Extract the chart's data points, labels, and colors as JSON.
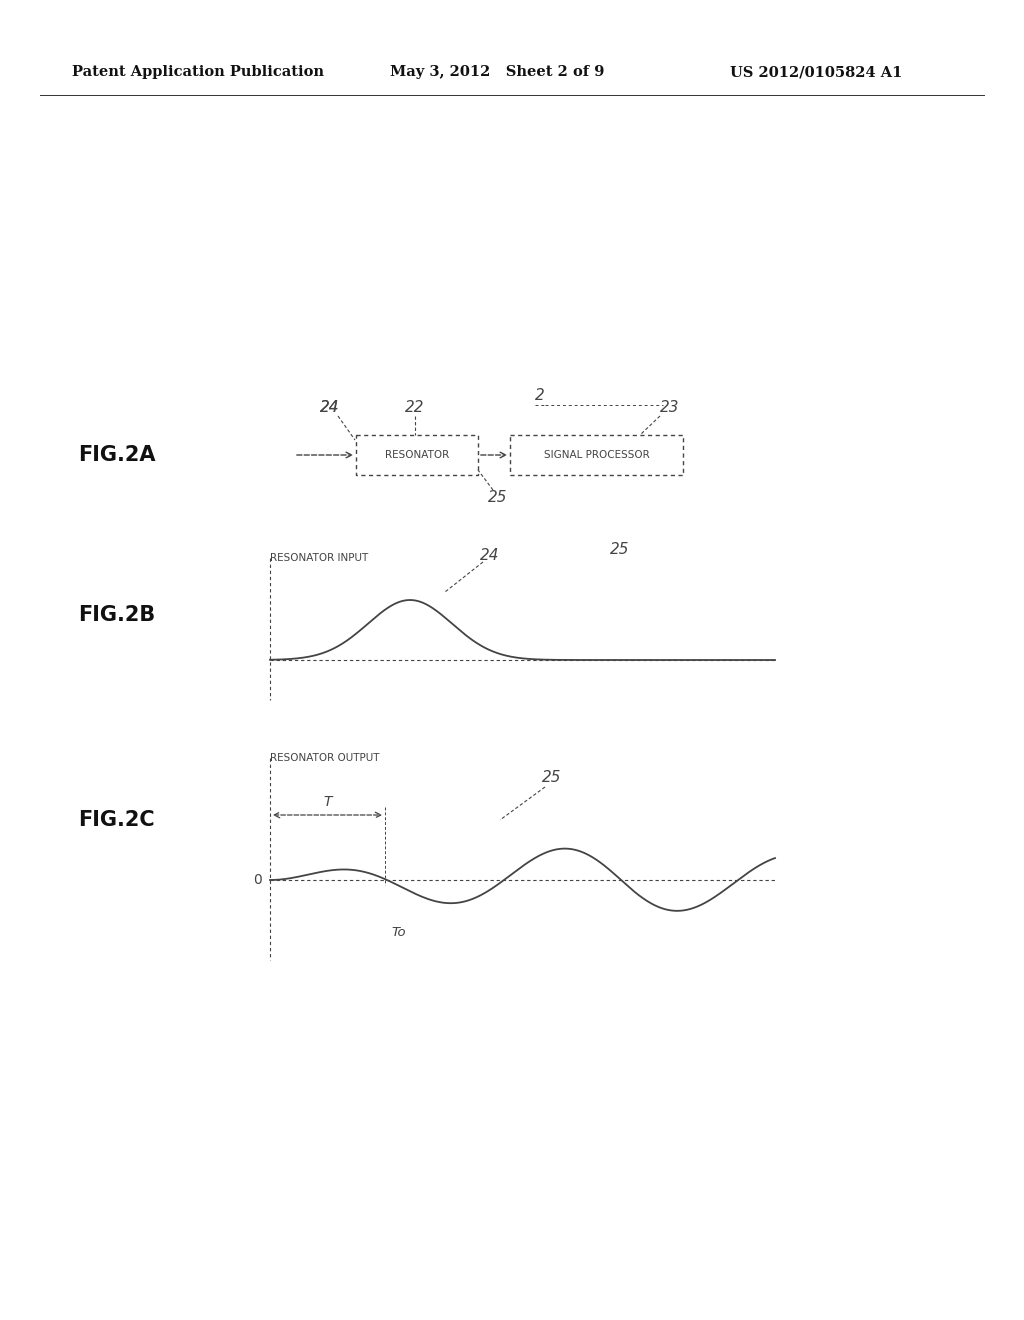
{
  "bg_color": "#ffffff",
  "header_left": "Patent Application Publication",
  "header_center": "May 3, 2012   Sheet 2 of 9",
  "header_right": "US 2012/0105824 A1",
  "fig2a_label": "FIG.2A",
  "fig2b_label": "FIG.2B",
  "fig2c_label": "FIG.2C",
  "resonator_text": "RESONATOR",
  "signal_processor_text": "SIGNAL PROCESSOR",
  "resonator_input_text": "RESONATOR INPUT",
  "resonator_output_text": "RESONATOR OUTPUT",
  "label_2": "2",
  "label_22": "22",
  "label_23": "23",
  "label_24": "24",
  "label_25_b": "25",
  "label_25_c": "25",
  "label_T": "T",
  "label_To": "To",
  "label_0": "0",
  "text_color": "#444444",
  "box_color": "#444444"
}
